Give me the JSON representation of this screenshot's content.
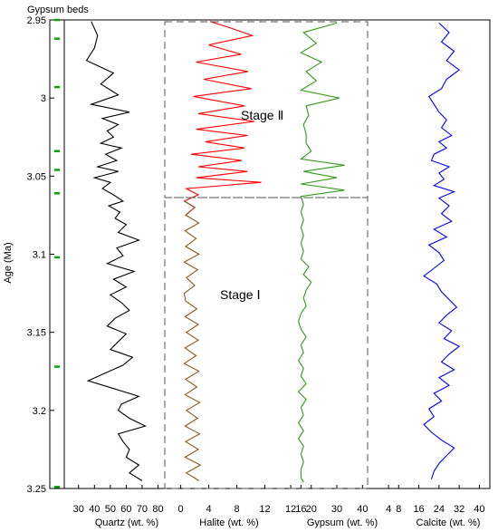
{
  "chart_data": {
    "type": "line",
    "y_axis": {
      "label": "Age (Ma)",
      "ticks": [
        "2.95",
        "3",
        "3.05",
        "3.1",
        "3.15",
        "3.2",
        "3.25"
      ],
      "tick_values": [
        2.95,
        3.0,
        3.05,
        3.1,
        3.15,
        3.2,
        3.25
      ],
      "range": [
        2.95,
        3.25
      ],
      "inverted": true
    },
    "gypsum_beds": {
      "label": "Gypsum beds",
      "color": "#00aa00",
      "ages": [
        2.95,
        2.962,
        2.993,
        3.034,
        3.046,
        3.061,
        3.102,
        3.172,
        3.249
      ]
    },
    "stages": [
      {
        "label": "Stage Ⅱ",
        "age_range": [
          2.95,
          3.065
        ]
      },
      {
        "label": "Stage Ⅰ",
        "age_range": [
          3.065,
          3.25
        ]
      }
    ],
    "panels": [
      {
        "name": "Quartz (wt. %)",
        "color": "#000000",
        "tick_labels": [
          "30",
          "40",
          "50",
          "60",
          "70",
          "80"
        ],
        "tick_values": [
          30,
          40,
          50,
          60,
          70,
          80
        ],
        "range": [
          25,
          82
        ],
        "age": [
          2.951,
          2.96,
          2.968,
          2.976,
          2.984,
          2.991,
          2.998,
          3.004,
          3.009,
          3.013,
          3.017,
          3.021,
          3.025,
          3.029,
          3.032,
          3.036,
          3.04,
          3.044,
          3.047,
          3.051,
          3.054,
          3.058,
          3.062,
          3.066,
          3.069,
          3.073,
          3.077,
          3.081,
          3.086,
          3.091,
          3.096,
          3.101,
          3.106,
          3.111,
          3.116,
          3.121,
          3.126,
          3.131,
          3.136,
          3.141,
          3.146,
          3.151,
          3.156,
          3.161,
          3.166,
          3.171,
          3.176,
          3.181,
          3.186,
          3.191,
          3.196,
          3.2,
          3.205,
          3.21,
          3.215,
          3.22,
          3.225,
          3.23,
          3.235,
          3.24,
          3.245
        ],
        "value": [
          38,
          42,
          40,
          35,
          52,
          44,
          55,
          38,
          62,
          45,
          55,
          48,
          52,
          44,
          57,
          47,
          54,
          42,
          55,
          40,
          50,
          45,
          52,
          58,
          49,
          56,
          53,
          60,
          55,
          68,
          54,
          58,
          48,
          65,
          52,
          60,
          50,
          57,
          62,
          53,
          48,
          60,
          55,
          50,
          64,
          58,
          47,
          36,
          52,
          68,
          57,
          55,
          62,
          72,
          55,
          58,
          62,
          60,
          68,
          62,
          70
        ],
        "note": "Quartz"
      },
      {
        "name": "Halite (wt. %)",
        "color": "#ff0000",
        "color_lower": "#8b5a1a",
        "tick_labels": [
          "0",
          "4",
          "8",
          "12"
        ],
        "tick_values": [
          0,
          4,
          8,
          12
        ],
        "range": [
          -1.5,
          14
        ],
        "age": [
          2.951,
          2.955,
          2.96,
          2.966,
          2.972,
          2.977,
          2.983,
          2.988,
          2.994,
          2.999,
          3.005,
          3.01,
          3.015,
          3.02,
          3.024,
          3.028,
          3.032,
          3.036,
          3.04,
          3.044,
          3.047,
          3.051,
          3.054,
          3.058,
          3.062,
          3.066,
          3.07,
          3.075,
          3.08,
          3.085,
          3.09,
          3.095,
          3.1,
          3.105,
          3.11,
          3.115,
          3.12,
          3.125,
          3.13,
          3.135,
          3.14,
          3.145,
          3.15,
          3.155,
          3.16,
          3.165,
          3.17,
          3.175,
          3.18,
          3.185,
          3.19,
          3.195,
          3.2,
          3.205,
          3.21,
          3.215,
          3.22,
          3.225,
          3.23,
          3.235,
          3.24,
          3.245
        ],
        "value": [
          4.2,
          7,
          10.2,
          4,
          8.6,
          2.2,
          9.6,
          3.3,
          10.1,
          1.8,
          9.1,
          2.5,
          10.5,
          2.2,
          9.5,
          3.5,
          9.1,
          1.5,
          8.7,
          2.5,
          9.5,
          2.2,
          11.5,
          0.8,
          2.5,
          0.5,
          2,
          0.7,
          2.6,
          0.6,
          2.2,
          0.7,
          2.6,
          0.5,
          2.4,
          0.8,
          2,
          0.5,
          0.7,
          2.3,
          0.6,
          2.5,
          0.8,
          2.5,
          0.6,
          2.2,
          0.5,
          2.6,
          0.7,
          2.3,
          0.6,
          2.7,
          0.8,
          2.4,
          0.6,
          2.7,
          0.7,
          2.5,
          0.6,
          2.8,
          0.8,
          2.6
        ]
      },
      {
        "name": "Gypsum (wt. %)",
        "color": "#33991a",
        "tick_labels": [
          "12",
          "16",
          "20",
          "30",
          "40"
        ],
        "tick_values": [
          12,
          16,
          20,
          30,
          40
        ],
        "range": [
          10.2,
          42
        ],
        "age": [
          2.952,
          2.958,
          2.965,
          2.971,
          2.977,
          2.983,
          2.989,
          2.995,
          3.0,
          3.005,
          3.011,
          3.017,
          3.023,
          3.029,
          3.034,
          3.039,
          3.043,
          3.047,
          3.051,
          3.055,
          3.059,
          3.063,
          3.068,
          3.073,
          3.078,
          3.083,
          3.088,
          3.093,
          3.098,
          3.103,
          3.108,
          3.113,
          3.118,
          3.123,
          3.128,
          3.133,
          3.138,
          3.143,
          3.148,
          3.153,
          3.158,
          3.163,
          3.168,
          3.173,
          3.178,
          3.183,
          3.188,
          3.193,
          3.198,
          3.203,
          3.208,
          3.213,
          3.218,
          3.223,
          3.228,
          3.233,
          3.238,
          3.243,
          3.246
        ],
        "value": [
          30,
          17,
          22,
          16,
          24,
          18,
          22,
          16,
          31,
          18,
          19,
          17,
          18,
          18,
          20,
          16,
          33,
          17,
          30,
          16,
          33,
          16,
          17,
          16,
          17,
          16,
          17,
          16,
          17,
          16,
          19,
          17,
          20,
          18,
          17,
          18,
          16,
          15,
          16,
          18,
          16,
          17,
          15,
          17,
          16,
          18,
          15,
          18,
          16,
          17,
          15,
          17,
          15,
          17,
          16,
          17,
          16,
          16,
          17
        ]
      },
      {
        "name": "Calcite (wt. %)",
        "color": "#0000ff",
        "tick_labels": [
          "4",
          "8",
          "16",
          "24",
          "32",
          "40"
        ],
        "tick_values": [
          4,
          8,
          16,
          24,
          32,
          40
        ],
        "range": [
          0,
          42
        ],
        "age": [
          2.952,
          2.958,
          2.964,
          2.97,
          2.976,
          2.982,
          2.988,
          2.994,
          2.999,
          3.004,
          3.009,
          3.014,
          3.019,
          3.024,
          3.028,
          3.032,
          3.036,
          3.04,
          3.044,
          3.048,
          3.052,
          3.056,
          3.06,
          3.064,
          3.069,
          3.074,
          3.079,
          3.084,
          3.089,
          3.094,
          3.099,
          3.104,
          3.109,
          3.114,
          3.119,
          3.124,
          3.129,
          3.134,
          3.139,
          3.144,
          3.149,
          3.154,
          3.159,
          3.164,
          3.169,
          3.174,
          3.179,
          3.184,
          3.189,
          3.194,
          3.199,
          3.204,
          3.209,
          3.214,
          3.219,
          3.224,
          3.229,
          3.234,
          3.239,
          3.244
        ],
        "value": [
          24,
          28,
          25,
          30,
          27,
          32,
          27,
          25,
          20,
          22,
          24,
          27,
          25,
          29,
          24,
          27,
          22,
          21,
          28,
          24,
          26,
          22,
          30,
          24,
          28,
          25,
          29,
          22,
          27,
          20,
          24,
          26,
          22,
          18,
          23,
          25,
          28,
          31,
          27,
          24,
          29,
          26,
          32,
          28,
          25,
          30,
          24,
          28,
          22,
          25,
          20,
          22,
          18,
          21,
          25,
          30,
          27,
          24,
          22,
          21
        ]
      }
    ]
  }
}
